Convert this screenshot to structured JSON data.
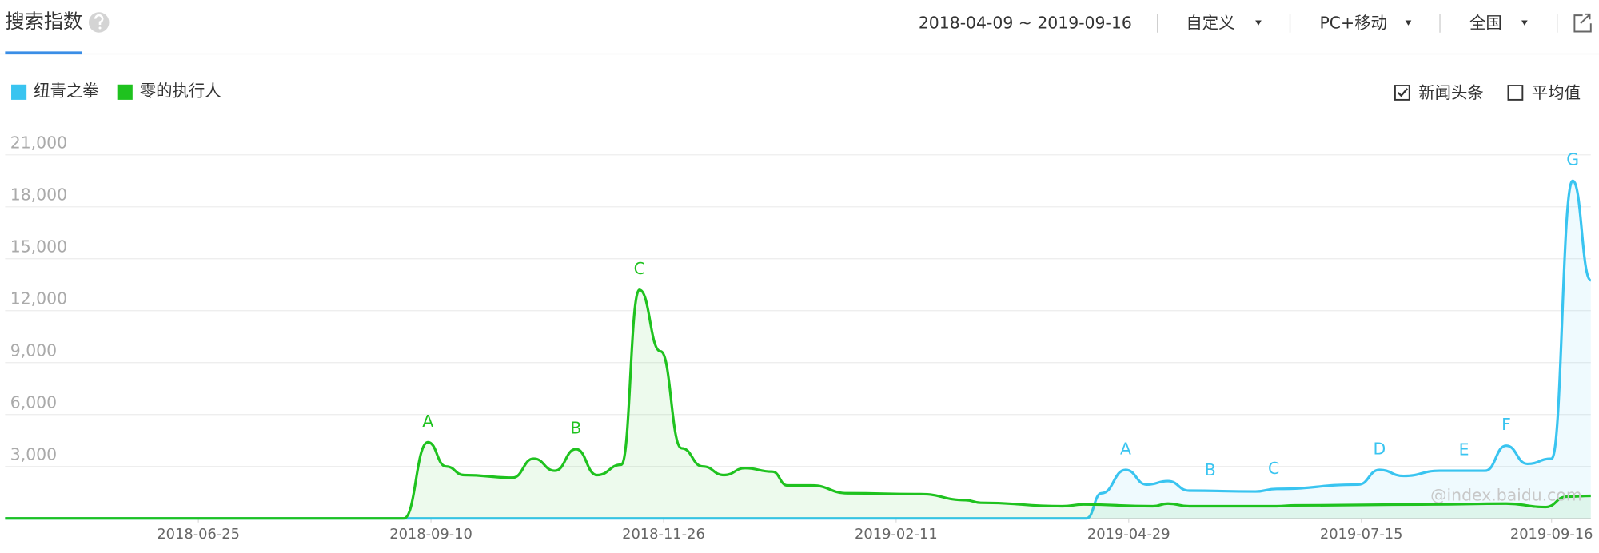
{
  "header": {
    "tab": "搜索指数",
    "date_range": "2018-04-09 ~ 2019-09-16",
    "dropdowns": [
      "自定义",
      "PC+移动",
      "全国"
    ]
  },
  "options": [
    {
      "label": "新闻头条",
      "checked": true
    },
    {
      "label": "平均值",
      "checked": false
    }
  ],
  "watermark": "@index.baidu.com",
  "chart_data": {
    "type": "line",
    "xlim": [
      "2018-04-22",
      "2019-09-29"
    ],
    "xticks": [
      "2018-06-25",
      "2018-09-10",
      "2018-11-26",
      "2019-02-11",
      "2019-04-29",
      "2019-07-15",
      "2019-09-16"
    ],
    "ylim": [
      0,
      21000
    ],
    "yticks": [
      {
        "value": 3000,
        "label": "3,000"
      },
      {
        "value": 6000,
        "label": "6,000"
      },
      {
        "value": 9000,
        "label": "9,000"
      },
      {
        "value": 12000,
        "label": "12,000"
      },
      {
        "value": 15000,
        "label": "15,000"
      },
      {
        "value": 18000,
        "label": "18,000"
      },
      {
        "value": 21000,
        "label": "21,000"
      }
    ],
    "grid": true,
    "series": [
      {
        "name": "纽青之拳",
        "color": "#39c4f0",
        "x": [
          "2018-04-22",
          "2019-04-15",
          "2019-04-20",
          "2019-04-28",
          "2019-05-05",
          "2019-05-12",
          "2019-05-19",
          "2019-06-10",
          "2019-06-17",
          "2019-07-14",
          "2019-07-21",
          "2019-07-29",
          "2019-08-10",
          "2019-08-25",
          "2019-09-01",
          "2019-09-08",
          "2019-09-16",
          "2019-09-23",
          "2019-09-29"
        ],
        "values": [
          0,
          0,
          1450,
          2800,
          1950,
          2150,
          1600,
          1550,
          1700,
          1950,
          2800,
          2450,
          2750,
          2750,
          4200,
          3150,
          3450,
          19500,
          13750
        ],
        "annotations": [
          {
            "label": "A",
            "x": "2019-04-28"
          },
          {
            "label": "B",
            "x": "2019-05-26"
          },
          {
            "label": "C",
            "x": "2019-06-16"
          },
          {
            "label": "D",
            "x": "2019-07-21"
          },
          {
            "label": "E",
            "x": "2019-08-18"
          },
          {
            "label": "F",
            "x": "2019-09-01"
          },
          {
            "label": "G",
            "x": "2019-09-23"
          }
        ]
      },
      {
        "name": "零的执行人",
        "color": "#1fc21f",
        "x": [
          "2018-04-22",
          "2018-09-01",
          "2018-09-09",
          "2018-09-15",
          "2018-09-21",
          "2018-10-07",
          "2018-10-14",
          "2018-10-21",
          "2018-10-28",
          "2018-11-04",
          "2018-11-12",
          "2018-11-18",
          "2018-11-25",
          "2018-12-02",
          "2018-12-09",
          "2018-12-16",
          "2018-12-23",
          "2019-01-01",
          "2019-01-06",
          "2019-01-14",
          "2019-01-26",
          "2019-02-19",
          "2019-03-06",
          "2019-03-11",
          "2019-04-07",
          "2019-04-14",
          "2019-05-07",
          "2019-05-12",
          "2019-05-19",
          "2019-06-17",
          "2019-06-23",
          "2019-08-07",
          "2019-09-01",
          "2019-09-14",
          "2019-09-21",
          "2019-09-29"
        ],
        "values": [
          0,
          0,
          4400,
          3000,
          2500,
          2350,
          3450,
          2750,
          4000,
          2500,
          3100,
          13200,
          9650,
          4050,
          3000,
          2500,
          2900,
          2700,
          1900,
          1900,
          1450,
          1400,
          1050,
          900,
          700,
          800,
          700,
          850,
          700,
          700,
          750,
          800,
          850,
          650,
          1250,
          1300
        ],
        "annotations": [
          {
            "label": "A",
            "x": "2018-09-09"
          },
          {
            "label": "B",
            "x": "2018-10-28"
          },
          {
            "label": "C",
            "x": "2018-11-18"
          }
        ]
      }
    ]
  }
}
